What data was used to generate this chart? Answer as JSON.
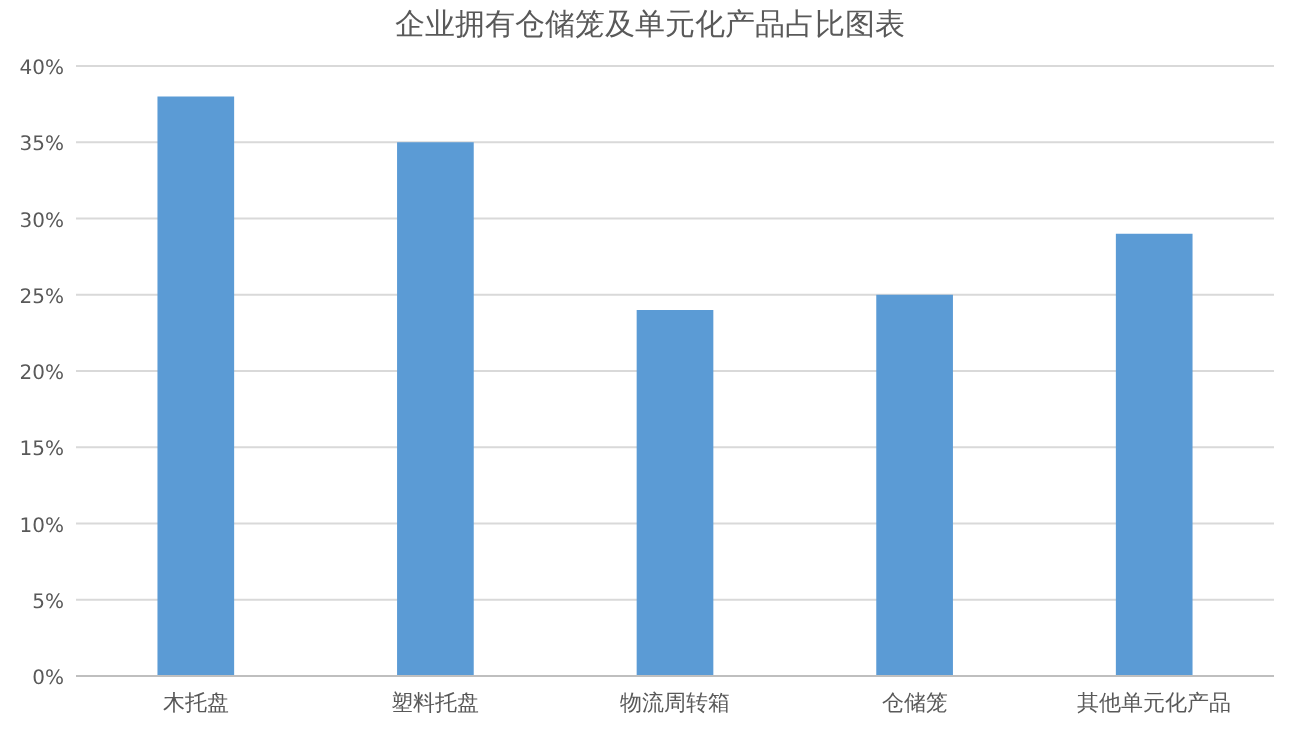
{
  "chart_data": {
    "type": "bar",
    "title": "企业拥有仓储笼及单元化产品占比图表",
    "categories": [
      "木托盘",
      "塑料托盘",
      "物流周转箱",
      "仓储笼",
      "其他单元化产品"
    ],
    "values": [
      38,
      35,
      24,
      25,
      29
    ],
    "color": "#5b9bd5",
    "ylim": [
      0,
      40
    ],
    "yticks": [
      {
        "value": 0,
        "label": "0%"
      },
      {
        "value": 5,
        "label": "5%"
      },
      {
        "value": 10,
        "label": "10%"
      },
      {
        "value": 15,
        "label": "15%"
      },
      {
        "value": 20,
        "label": "20%"
      },
      {
        "value": 25,
        "label": "25%"
      },
      {
        "value": 30,
        "label": "30%"
      },
      {
        "value": 35,
        "label": "35%"
      },
      {
        "value": 40,
        "label": "40%"
      }
    ],
    "grid": "y"
  }
}
